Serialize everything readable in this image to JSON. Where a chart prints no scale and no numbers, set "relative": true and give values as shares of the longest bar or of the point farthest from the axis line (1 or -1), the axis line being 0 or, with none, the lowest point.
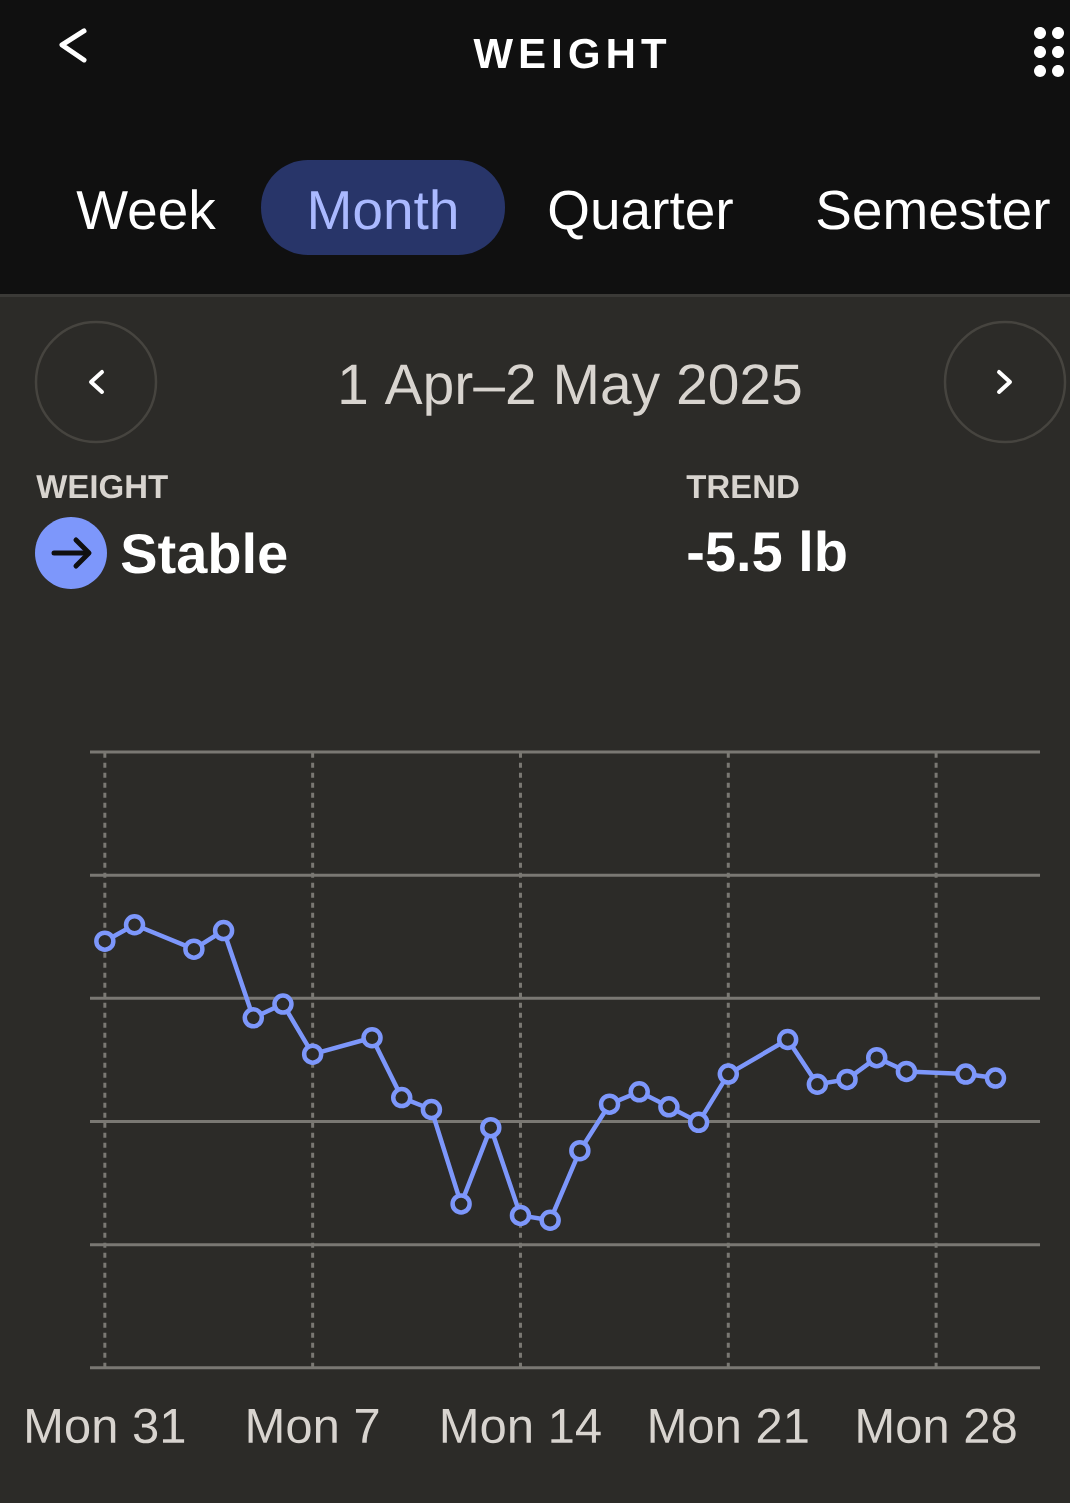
{
  "chart_data": {
    "type": "line",
    "title": "WEIGHT",
    "subtitle": "1 Apr–2 May 2025",
    "annotations": [
      "Week",
      "Month",
      "Quarter",
      "Semester",
      "WEIGHT",
      "Stable",
      "TREND",
      "-5.5 lb"
    ],
    "x": [
      "2025-03-31",
      "2025-04-01",
      "2025-04-03",
      "2025-04-04",
      "2025-04-05",
      "2025-04-06",
      "2025-04-07",
      "2025-04-09",
      "2025-04-10",
      "2025-04-11",
      "2025-04-12",
      "2025-04-13",
      "2025-04-14",
      "2025-04-15",
      "2025-04-16",
      "2025-04-17",
      "2025-04-18",
      "2025-04-19",
      "2025-04-20",
      "2025-04-21",
      "2025-04-23",
      "2025-04-24",
      "2025-04-25",
      "2025-04-26",
      "2025-04-27",
      "2025-04-29",
      "2025-04-30"
    ],
    "values": [
      0.963,
      1,
      0.945,
      0.987,
      0.79,
      0.821,
      0.708,
      0.745,
      0.61,
      0.583,
      0.37,
      0.542,
      0.344,
      0.333,
      0.49,
      0.595,
      0.623,
      0.589,
      0.554,
      0.663,
      0.741,
      0.64,
      0.651,
      0.7,
      0.669,
      0.663,
      0.654
    ],
    "color": "#7d97fb",
    "relative": true,
    "xlim": [
      "2025-03-30T12:00",
      "2025-05-01T12:00"
    ],
    "xticks": [
      {
        "value": "2025-03-31",
        "label": "Mon 31"
      },
      {
        "value": "2025-04-07",
        "label": "Mon 7"
      },
      {
        "value": "2025-04-14",
        "label": "Mon 14"
      },
      {
        "value": "2025-04-21",
        "label": "Mon 21"
      },
      {
        "value": "2025-04-28",
        "label": "Mon 28"
      }
    ],
    "grid": true,
    "marker": "circle",
    "line_style": "solid"
  }
}
